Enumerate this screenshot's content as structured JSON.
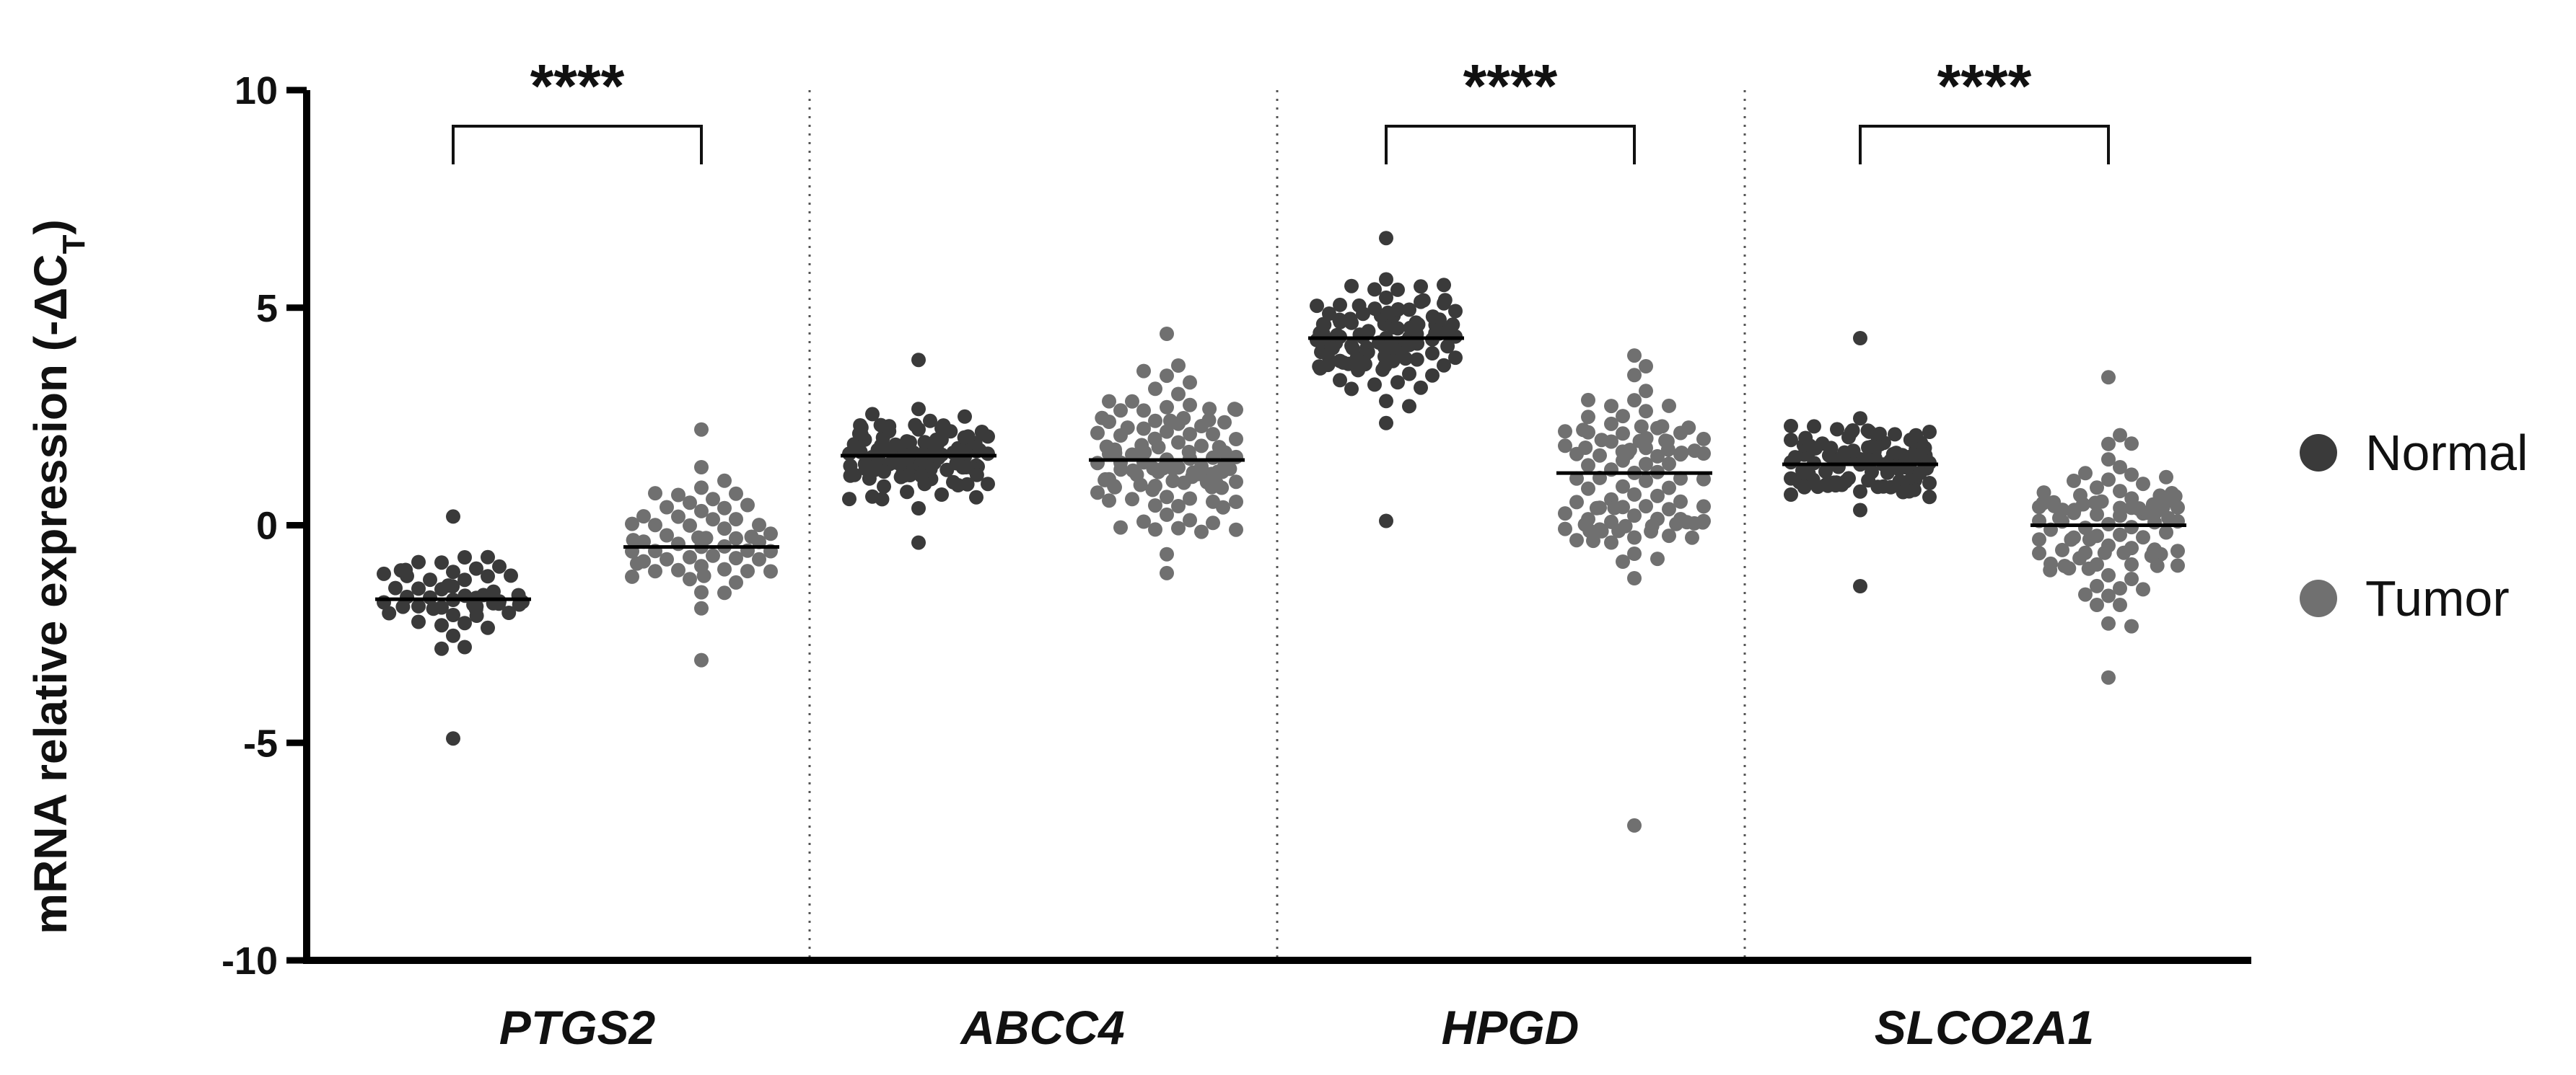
{
  "chart_data": {
    "type": "scatter",
    "subtype": "beeswarm",
    "ylabel": "mRNA relative expression (-ΔC",
    "ylabel_sub": "T",
    "ylabel_close": ")",
    "ylim": [
      -10,
      10
    ],
    "yticks": [
      10,
      5,
      0,
      -5,
      -10
    ],
    "ytick_labels": [
      "10",
      "5",
      "0",
      "-5",
      "-10"
    ],
    "categories": [
      "PTGS2",
      "ABCC4",
      "HPGD",
      "SLCO2A1"
    ],
    "legend": {
      "position": "right",
      "entries": [
        "Normal",
        "Tumor"
      ]
    },
    "colors": {
      "Normal": "#3a3a3a",
      "Tumor": "#707070",
      "axis": "#000000"
    },
    "series": [
      {
        "name": "Normal",
        "groups": [
          {
            "category": "PTGS2",
            "median": -1.7,
            "n": 55,
            "min": -4.9,
            "max": 0.2,
            "spread": 0.8
          },
          {
            "category": "ABCC4",
            "median": 1.6,
            "n": 110,
            "min": -0.4,
            "max": 3.8,
            "spread": 0.65
          },
          {
            "category": "HPGD",
            "median": 4.3,
            "n": 110,
            "min": 0.1,
            "max": 6.6,
            "spread": 0.9
          },
          {
            "category": "SLCO2A1",
            "median": 1.4,
            "n": 110,
            "min": -1.4,
            "max": 4.3,
            "spread": 0.65
          }
        ]
      },
      {
        "name": "Tumor",
        "groups": [
          {
            "category": "PTGS2",
            "median": -0.5,
            "n": 60,
            "min": -3.1,
            "max": 2.2,
            "spread": 1.2
          },
          {
            "category": "ABCC4",
            "median": 1.5,
            "n": 110,
            "min": -1.1,
            "max": 4.4,
            "spread": 1.2
          },
          {
            "category": "HPGD",
            "median": 1.2,
            "n": 100,
            "min": -6.9,
            "max": 3.9,
            "spread": 1.4
          },
          {
            "category": "SLCO2A1",
            "median": 0.0,
            "n": 95,
            "min": -3.5,
            "max": 3.4,
            "spread": 1.3
          }
        ]
      }
    ],
    "significance": [
      {
        "category": "PTGS2",
        "label": "****"
      },
      {
        "category": "HPGD",
        "label": "****"
      },
      {
        "category": "SLCO2A1",
        "label": "****"
      }
    ]
  }
}
